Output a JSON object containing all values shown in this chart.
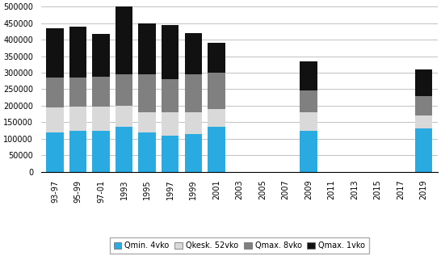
{
  "categories": [
    "93-97",
    "95-99",
    "97-01",
    "1993",
    "1995",
    "1997",
    "1999",
    "2001",
    "2003",
    "2005",
    "2007",
    "2009",
    "2011",
    "2013",
    "2015",
    "2017",
    "2019"
  ],
  "qmin4vko": [
    120000,
    125000,
    125000,
    135000,
    120000,
    110000,
    115000,
    135000,
    0,
    0,
    0,
    125000,
    0,
    0,
    0,
    0,
    130000
  ],
  "qkesk52vko": [
    75000,
    72000,
    73000,
    65000,
    60000,
    70000,
    65000,
    55000,
    0,
    0,
    0,
    55000,
    0,
    0,
    0,
    0,
    40000
  ],
  "qmax8vko": [
    90000,
    88000,
    90000,
    95000,
    115000,
    100000,
    115000,
    110000,
    0,
    0,
    0,
    65000,
    0,
    0,
    0,
    0,
    60000
  ],
  "qmax1vko": [
    150000,
    155000,
    130000,
    210000,
    155000,
    165000,
    125000,
    90000,
    0,
    0,
    0,
    90000,
    0,
    0,
    0,
    0,
    80000
  ],
  "color_qmin": "#29ABE2",
  "color_qkesk": "#D9D9D9",
  "color_qmax8": "#808080",
  "color_qmax1": "#111111",
  "ylim": [
    0,
    500000
  ],
  "yticks": [
    0,
    50000,
    100000,
    150000,
    200000,
    250000,
    300000,
    350000,
    400000,
    450000,
    500000
  ],
  "legend_labels": [
    "Qmin. 4vko",
    "Qkesk. 52vko",
    "Qmax. 8vko",
    "Qmax. 1vko"
  ],
  "tick_labels_all": [
    "93-97",
    "95-99",
    "97-01",
    "1993",
    "1995",
    "1997",
    "1999",
    "2001",
    "2003",
    "2005",
    "2007",
    "2009",
    "2011",
    "2013",
    "2015",
    "2017",
    "2019"
  ]
}
